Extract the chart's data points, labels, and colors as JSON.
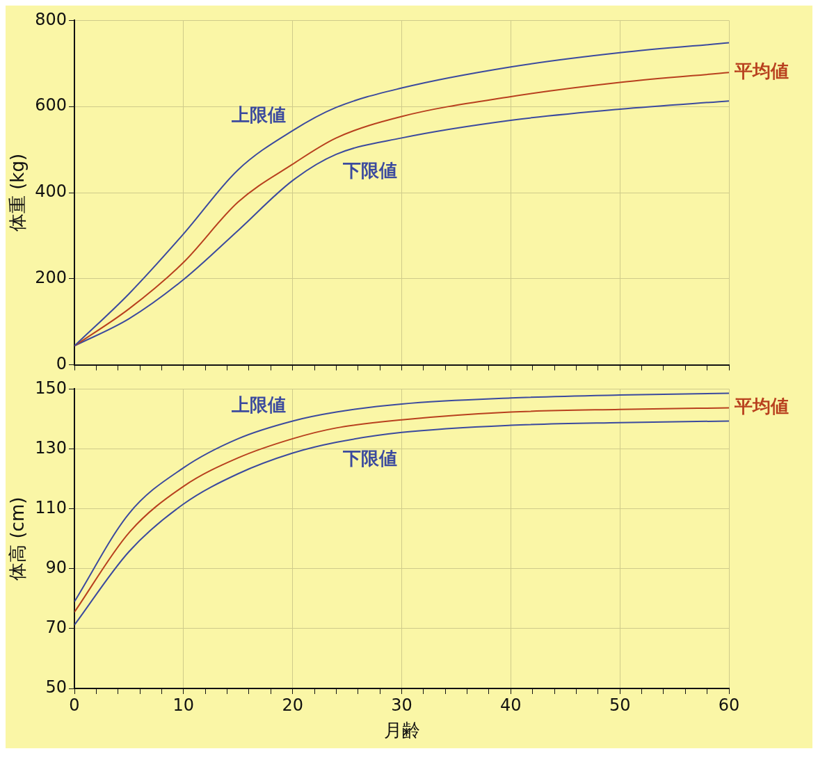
{
  "chart_data": [
    {
      "type": "line",
      "ylabel": "体重 (kg)",
      "x": [
        0,
        5,
        10,
        15,
        20,
        24,
        30,
        40,
        50,
        60
      ],
      "xlim": [
        0,
        60
      ],
      "xticks": [
        0,
        {
          "value": 2,
          "label": null
        },
        {
          "value": 4,
          "label": null
        },
        {
          "value": 6,
          "label": null
        },
        {
          "value": 8,
          "label": null
        },
        10,
        {
          "value": 12,
          "label": null
        },
        {
          "value": 14,
          "label": null
        },
        {
          "value": 16,
          "label": null
        },
        {
          "value": 18,
          "label": null
        },
        20,
        {
          "value": 22,
          "label": null
        },
        {
          "value": 24,
          "label": null
        },
        {
          "value": 26,
          "label": null
        },
        {
          "value": 28,
          "label": null
        },
        30,
        {
          "value": 32,
          "label": null
        },
        {
          "value": 34,
          "label": null
        },
        {
          "value": 36,
          "label": null
        },
        {
          "value": 38,
          "label": null
        },
        40,
        {
          "value": 42,
          "label": null
        },
        {
          "value": 44,
          "label": null
        },
        {
          "value": 46,
          "label": null
        },
        {
          "value": 48,
          "label": null
        },
        50,
        {
          "value": 52,
          "label": null
        },
        {
          "value": 54,
          "label": null
        },
        {
          "value": 56,
          "label": null
        },
        {
          "value": 58,
          "label": null
        },
        60
      ],
      "ylim": [
        0,
        800
      ],
      "yticks": [
        0,
        200,
        400,
        600,
        800
      ],
      "grid": true,
      "tick_labels": "y",
      "legend": false,
      "series": [
        {
          "name": "上限値",
          "color": "#3b4a9e",
          "values": [
            44,
            165,
            304,
            453,
            544,
            598,
            643,
            692,
            725,
            748
          ]
        },
        {
          "name": "平均値",
          "color": "#b8401e",
          "values": [
            44,
            130,
            238,
            378,
            466,
            527,
            577,
            623,
            656,
            679
          ]
        },
        {
          "name": "下限値",
          "color": "#3b4a9e",
          "values": [
            44,
            107,
            198,
            312,
            428,
            489,
            527,
            568,
            594,
            613
          ]
        }
      ]
    },
    {
      "type": "line",
      "xlabel": "月齢",
      "ylabel": "体高 (cm)",
      "x": [
        0,
        5,
        10,
        15,
        20,
        24,
        30,
        40,
        50,
        60
      ],
      "xlim": [
        0,
        60
      ],
      "xticks": [
        0,
        {
          "value": 2,
          "label": null
        },
        {
          "value": 4,
          "label": null
        },
        {
          "value": 6,
          "label": null
        },
        {
          "value": 8,
          "label": null
        },
        10,
        {
          "value": 12,
          "label": null
        },
        {
          "value": 14,
          "label": null
        },
        {
          "value": 16,
          "label": null
        },
        {
          "value": 18,
          "label": null
        },
        20,
        {
          "value": 22,
          "label": null
        },
        {
          "value": 24,
          "label": null
        },
        {
          "value": 26,
          "label": null
        },
        {
          "value": 28,
          "label": null
        },
        30,
        {
          "value": 32,
          "label": null
        },
        {
          "value": 34,
          "label": null
        },
        {
          "value": 36,
          "label": null
        },
        {
          "value": 38,
          "label": null
        },
        40,
        {
          "value": 42,
          "label": null
        },
        {
          "value": 44,
          "label": null
        },
        {
          "value": 46,
          "label": null
        },
        {
          "value": 48,
          "label": null
        },
        50,
        {
          "value": 52,
          "label": null
        },
        {
          "value": 54,
          "label": null
        },
        {
          "value": 56,
          "label": null
        },
        {
          "value": 58,
          "label": null
        },
        60
      ],
      "ylim": [
        50,
        150
      ],
      "yticks": [
        50,
        70,
        90,
        110,
        130,
        150
      ],
      "grid": true,
      "legend": false,
      "series": [
        {
          "name": "上限値",
          "color": "#3b4a9e",
          "values": [
            79,
            108.4,
            123.7,
            133.4,
            139.3,
            142.3,
            145,
            147,
            148,
            148.6
          ]
        },
        {
          "name": "平均値",
          "color": "#b8401e",
          "values": [
            75.5,
            102,
            117.5,
            127,
            133.4,
            137,
            139.7,
            142.3,
            143.2,
            143.7
          ]
        },
        {
          "name": "下限値",
          "color": "#3b4a9e",
          "values": [
            71.2,
            95.7,
            111.6,
            121.7,
            128.6,
            132.2,
            135.5,
            137.9,
            138.8,
            139.3
          ]
        }
      ]
    }
  ]
}
